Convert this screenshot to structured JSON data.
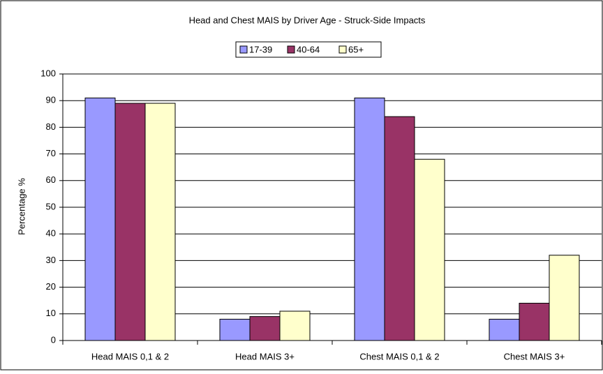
{
  "chart_data": {
    "type": "bar",
    "title": "Head and Chest MAIS by Driver Age - Struck-Side Impacts",
    "ylabel": "Percentage %",
    "categories": [
      "Head MAIS 0,1 & 2",
      "Head MAIS 3+",
      "Chest MAIS 0,1 & 2",
      "Chest MAIS 3+"
    ],
    "series": [
      {
        "name": "17-39",
        "color": "#9999ff",
        "values": [
          91,
          8,
          91,
          8
        ]
      },
      {
        "name": "40-64",
        "color": "#993366",
        "values": [
          89,
          9,
          84,
          14
        ]
      },
      {
        "name": "65+",
        "color": "#ffffcc",
        "values": [
          89,
          11,
          68,
          32
        ]
      }
    ],
    "ylim": [
      0,
      100
    ],
    "yticks": [
      0,
      10,
      20,
      30,
      40,
      50,
      60,
      70,
      80,
      90,
      100
    ],
    "grid": true,
    "legend": "top"
  }
}
